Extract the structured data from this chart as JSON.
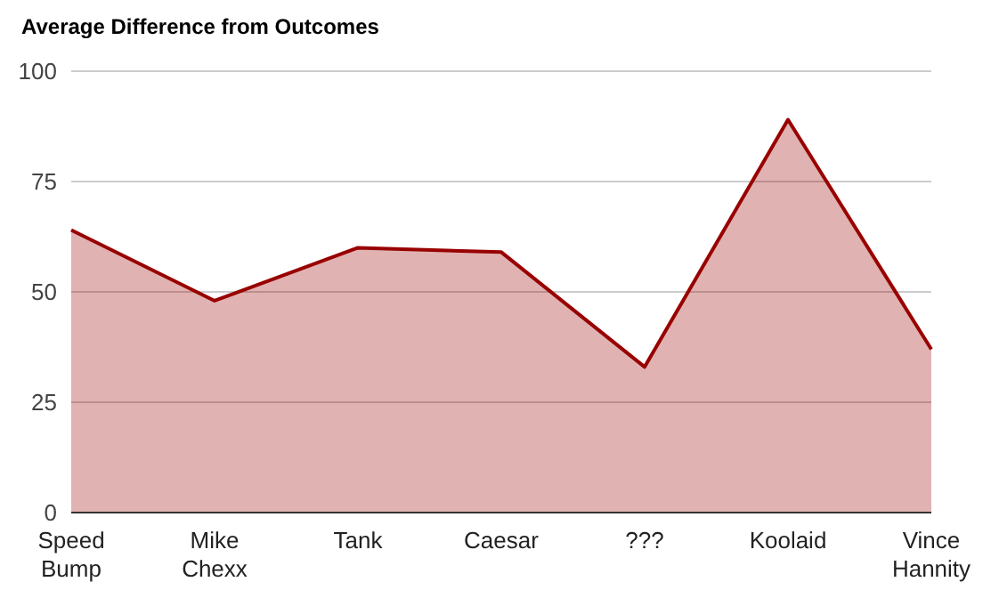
{
  "chart_data": {
    "type": "area",
    "title": "Average Difference from Outcomes",
    "categories": [
      "Speed Bump",
      "Mike Chexx",
      "Tank",
      "Caesar",
      "???",
      "Koolaid",
      "Vince Hannity"
    ],
    "series": [
      {
        "color": "#990000",
        "values": [
          64,
          48,
          60,
          59,
          33,
          89,
          37
        ]
      }
    ],
    "ylim": [
      0,
      100
    ],
    "yticks": [
      0,
      25,
      50,
      75,
      100
    ],
    "grid": "y",
    "legend": false
  }
}
